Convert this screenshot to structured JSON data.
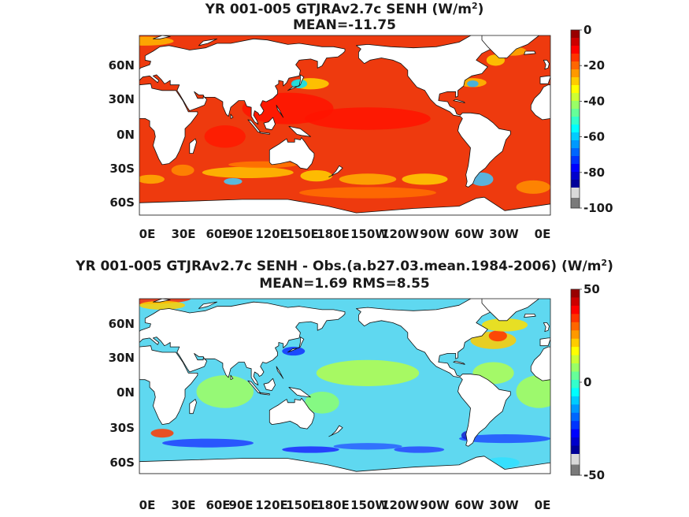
{
  "chart_data": [
    {
      "type": "heatmap",
      "title_line1": "YR 001-005 GTJRAv2.7c  SENH (W/m",
      "title_sup": "2",
      "title_close": ")",
      "title_line2": "MEAN=-11.75",
      "x_ticks": [
        "0E",
        "30E",
        "60E",
        "90E",
        "120E",
        "150E",
        "180E",
        "150W",
        "120W",
        "90W",
        "60W",
        "30W",
        "0E"
      ],
      "y_ticks": [
        "60N",
        "30N",
        "0N",
        "30S",
        "60S"
      ],
      "colorbar": {
        "min": -100,
        "max": 0,
        "ticks": [
          "0",
          "-20",
          "-40",
          "-60",
          "-80",
          "-100"
        ],
        "tick_values": [
          0,
          -20,
          -40,
          -60,
          -80,
          -100
        ],
        "colormap": "jet",
        "under_colors": [
          "#d9d9d9",
          "#7a7a7a"
        ]
      },
      "background": "#ee3a0e"
    },
    {
      "type": "heatmap",
      "title_line1": "YR 001-005 GTJRAv2.7c SENH - Obs.(a.b27.03.mean.1984-2006) (W/m",
      "title_sup": "2",
      "title_close": ")",
      "title_line2": "MEAN=1.69 RMS=8.55",
      "x_ticks": [
        "0E",
        "30E",
        "60E",
        "90E",
        "120E",
        "150E",
        "180E",
        "150W",
        "120W",
        "90W",
        "60W",
        "30W",
        "0E"
      ],
      "y_ticks": [
        "60N",
        "30N",
        "0N",
        "30S",
        "60S"
      ],
      "colorbar": {
        "min": -50,
        "max": 50,
        "ticks": [
          "50",
          "0",
          "-50"
        ],
        "tick_values": [
          50,
          0,
          -50
        ],
        "colormap": "jet",
        "under_colors": [
          "#d9d9d9",
          "#7a7a7a"
        ]
      },
      "background": "#5fd8f0"
    }
  ]
}
